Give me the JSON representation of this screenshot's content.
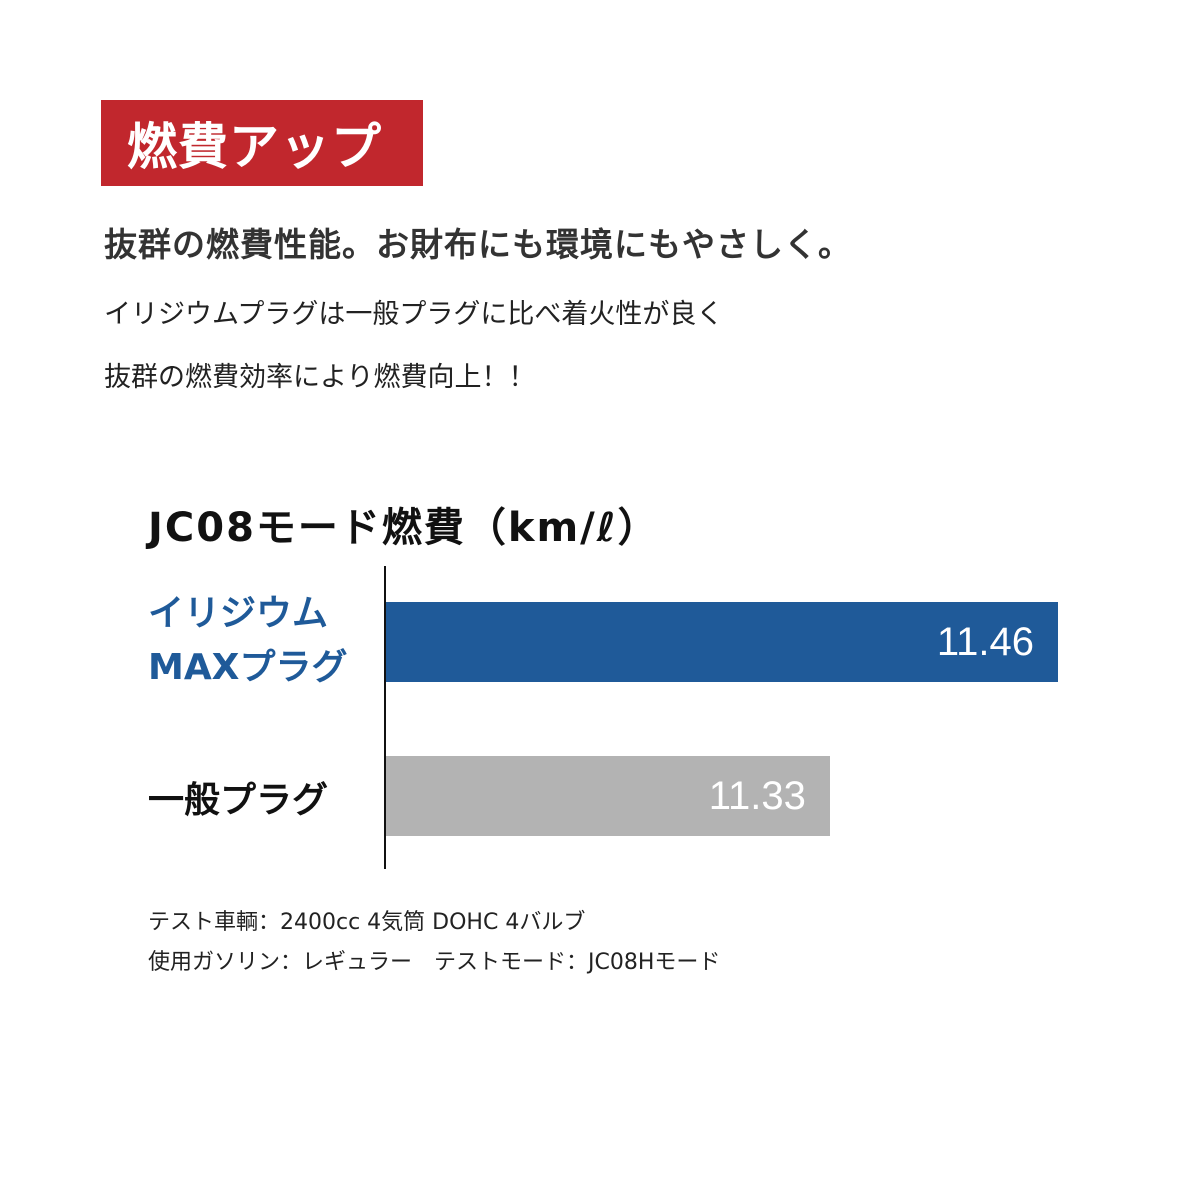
{
  "badge": "燃費アップ",
  "headline": "抜群の燃費性能。お財布にも環境にもやさしく。",
  "description": [
    "イリジウムプラグは一般プラグに比べ着火性が良く",
    "抜群の燃費効率により燃費向上！！"
  ],
  "colors": {
    "badge": "#c1272d",
    "iridium": "#1f5a99",
    "standard": "#b3b3b3"
  },
  "chart_data": {
    "type": "bar",
    "orientation": "horizontal",
    "title": "JC08モード燃費（km/ℓ）",
    "categories": [
      {
        "line1": "イリジウム",
        "line2": "MAXプラグ"
      },
      {
        "line1": "一般プラグ",
        "line2": ""
      }
    ],
    "values": [
      11.46,
      11.33
    ],
    "value_labels": [
      "11.46",
      "11.33"
    ],
    "xlim": [
      11.077,
      11.46
    ],
    "grid": false
  },
  "notes": [
    "テスト車輌：2400cc 4気筒 DOHC 4バルブ",
    "使用ガソリン：レギュラー　テストモード：JC08Hモード"
  ]
}
